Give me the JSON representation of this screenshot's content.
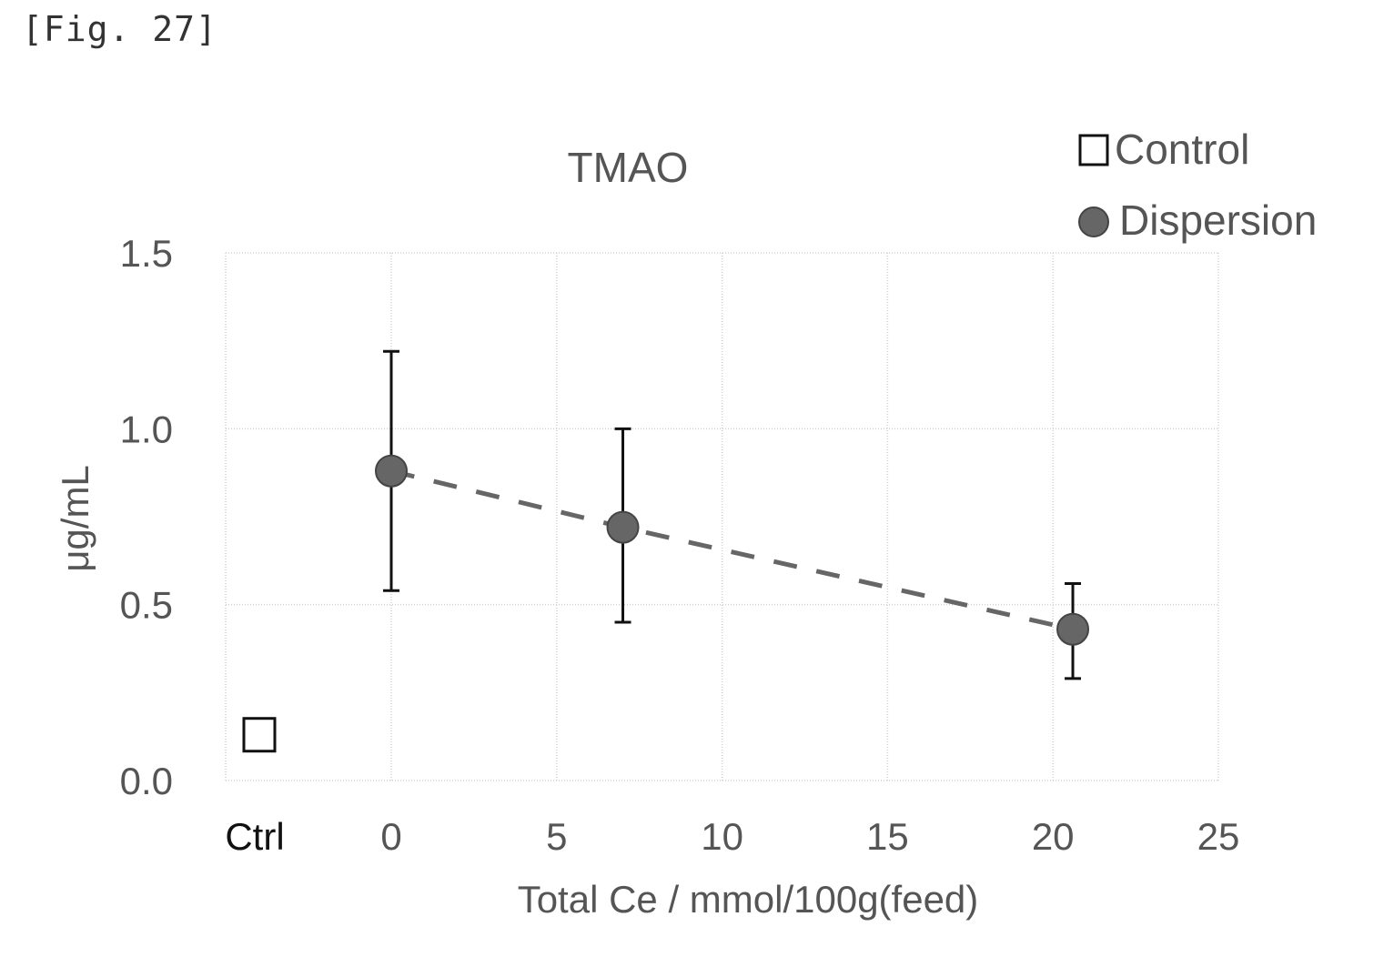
{
  "figure_label": "[Fig. 27]",
  "chart_data": {
    "type": "scatter",
    "title": "TMAO",
    "xlabel": "Total Ce / mmol/100g(feed)",
    "ylabel": "μg/mL",
    "xlim": [
      0,
      25
    ],
    "ylim": [
      0.0,
      1.5
    ],
    "x_ticks": [
      "0",
      "5",
      "10",
      "15",
      "20",
      "25"
    ],
    "y_ticks": [
      "0.0",
      "0.5",
      "1.0",
      "1.5"
    ],
    "extra_category_label": "Ctrl",
    "grid": true,
    "legend_position": "top-right",
    "series": [
      {
        "name": "Control",
        "marker": "open-square",
        "color": "#111111",
        "points": [
          {
            "category": "Ctrl",
            "y": 0.13
          }
        ]
      },
      {
        "name": "Dispersion",
        "marker": "filled-circle",
        "color": "#666666",
        "line": "dashed",
        "points": [
          {
            "x": 0,
            "y": 0.88,
            "err_low": 0.54,
            "err_high": 1.22
          },
          {
            "x": 7,
            "y": 0.72,
            "err_low": 0.45,
            "err_high": 1.0
          },
          {
            "x": 20.6,
            "y": 0.43,
            "err_low": 0.29,
            "err_high": 0.56
          }
        ]
      }
    ]
  }
}
